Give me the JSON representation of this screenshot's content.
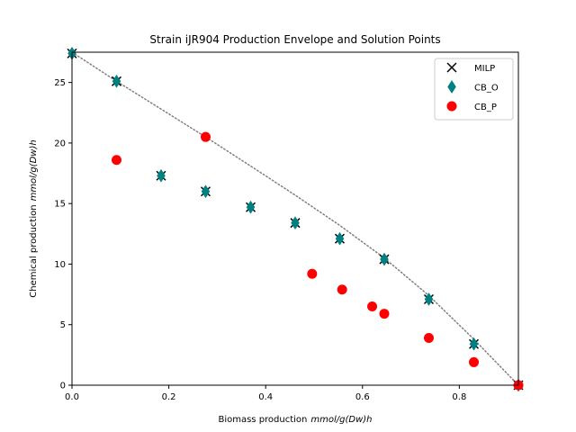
{
  "chart_data": {
    "type": "scatter",
    "title": "Strain iJR904 Production Envelope and Solution Points",
    "xlabel": "Biomass production",
    "xlabel_unit": "mmol/g(Dw)h",
    "ylabel": "Chemical production",
    "ylabel_unit": "mmol/g(Dw)h",
    "xlim": [
      0,
      0.922
    ],
    "ylim": [
      0,
      27.5
    ],
    "xticks": [
      {
        "value": 0.0,
        "label": "0.0"
      },
      {
        "value": 0.2,
        "label": "0.2"
      },
      {
        "value": 0.4,
        "label": "0.4"
      },
      {
        "value": 0.6,
        "label": "0.6"
      },
      {
        "value": 0.8,
        "label": "0.8"
      }
    ],
    "yticks": [
      {
        "value": 0,
        "label": "0"
      },
      {
        "value": 5,
        "label": "5"
      },
      {
        "value": 10,
        "label": "10"
      },
      {
        "value": 15,
        "label": "15"
      },
      {
        "value": 20,
        "label": "20"
      },
      {
        "value": 25,
        "label": "25"
      }
    ],
    "grid": false,
    "legend_position": "top-right",
    "envelope": {
      "style": "dotted",
      "color": "#808080",
      "x": [
        0.0,
        0.092,
        0.184,
        0.276,
        0.369,
        0.461,
        0.553,
        0.645,
        0.737,
        0.83,
        0.922
      ],
      "y": [
        27.5,
        25.1,
        22.8,
        20.5,
        18.1,
        15.7,
        13.2,
        10.5,
        7.4,
        3.8,
        0.0
      ]
    },
    "series": [
      {
        "name": "MILP",
        "marker": "x",
        "color": "#000000",
        "x": [
          0.0,
          0.092,
          0.184,
          0.276,
          0.369,
          0.461,
          0.553,
          0.645,
          0.737,
          0.83,
          0.922
        ],
        "y": [
          27.4,
          25.1,
          17.3,
          16.0,
          14.7,
          13.4,
          12.1,
          10.4,
          7.1,
          3.4,
          0.0
        ]
      },
      {
        "name": "CB_O",
        "marker": "thin_diamond",
        "color": "#008080",
        "x": [
          0.0,
          0.092,
          0.184,
          0.276,
          0.369,
          0.461,
          0.553,
          0.645,
          0.737,
          0.83,
          0.922
        ],
        "y": [
          27.4,
          25.1,
          17.3,
          16.0,
          14.7,
          13.4,
          12.1,
          10.4,
          7.1,
          3.4,
          0.0
        ]
      },
      {
        "name": "CB_P",
        "marker": "circle",
        "color": "#ff0000",
        "x": [
          0.092,
          0.276,
          0.496,
          0.558,
          0.62,
          0.645,
          0.737,
          0.83,
          0.922
        ],
        "y": [
          18.6,
          20.5,
          9.2,
          7.9,
          6.5,
          5.9,
          3.9,
          1.9,
          0.0
        ]
      }
    ]
  }
}
